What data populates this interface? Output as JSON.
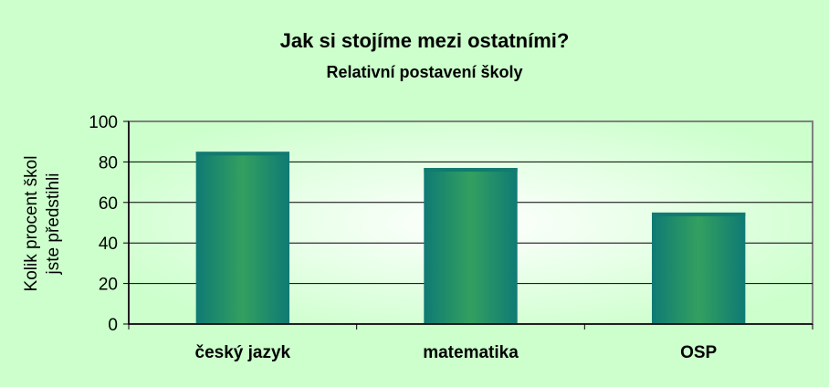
{
  "chart_data": {
    "type": "bar",
    "title": "Jak si stojíme mezi ostatními?",
    "subtitle": "Relativní postavení školy",
    "ylabel_lines": [
      "Kolik procent škol",
      "jste předstihli"
    ],
    "categories": [
      "český jazyk",
      "matematika",
      "OSP"
    ],
    "values": [
      85,
      77,
      55
    ],
    "ylim": [
      0,
      100
    ],
    "yticks": [
      0,
      20,
      40,
      60,
      80,
      100
    ],
    "grid": true,
    "legend": "none",
    "colors": {
      "background": "#ccffcc",
      "plot_center": "#ffffff",
      "plot_edge": "#ccffcc",
      "bar_center": "#33a060",
      "bar_edge": "#0f7a74",
      "bar_top": "#127a70",
      "axis": "#808080",
      "grid": "#000000"
    }
  }
}
